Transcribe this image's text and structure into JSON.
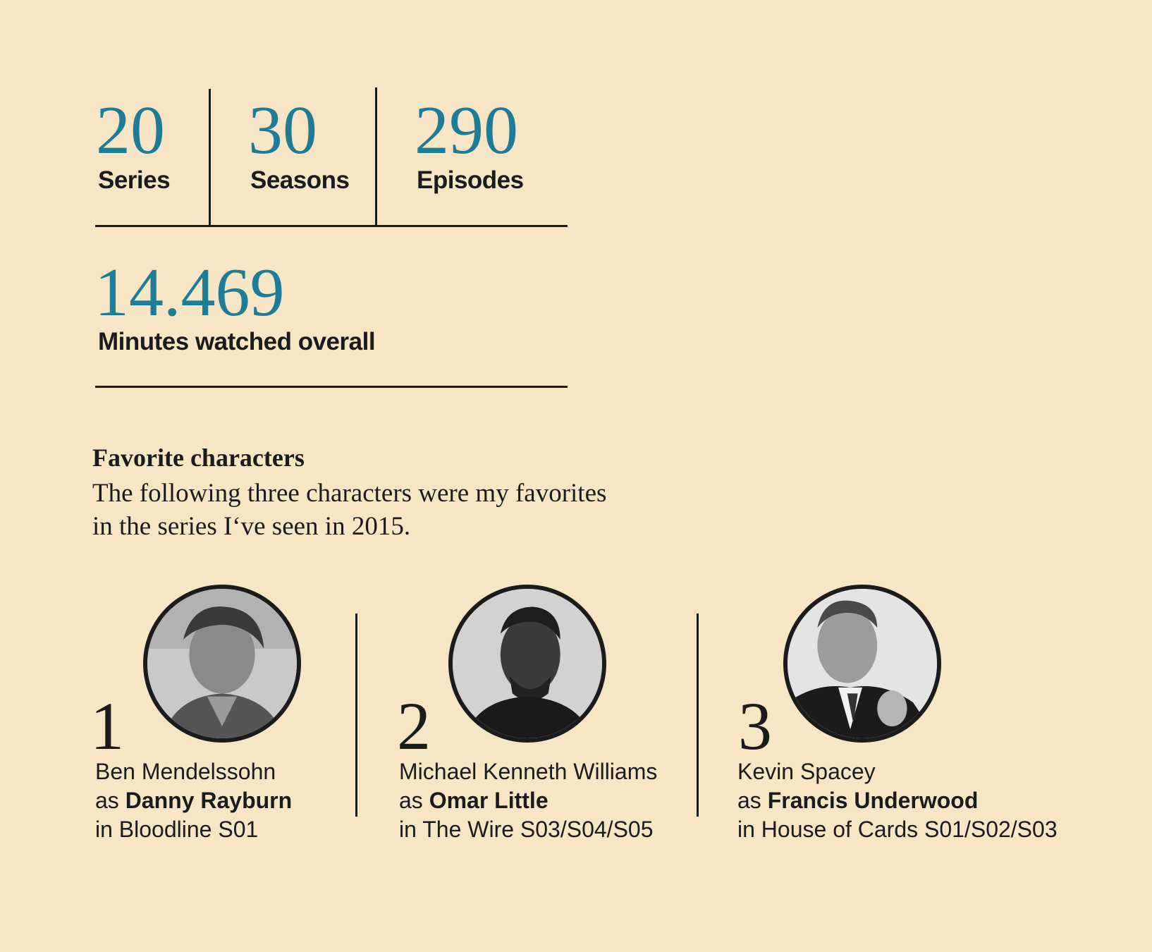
{
  "stats": {
    "series": {
      "value": "20",
      "label": "Series"
    },
    "seasons": {
      "value": "30",
      "label": "Seasons"
    },
    "episodes": {
      "value": "290",
      "label": "Episodes"
    },
    "minutes": {
      "value": "14.469",
      "label": "Minutes watched overall"
    }
  },
  "favorites": {
    "title": "Favorite characters",
    "description": "The following three characters were my favorites in the series I‘ve seen in 2015.",
    "characters": [
      {
        "rank": "1",
        "actor": "Ben Mendelssohn",
        "as_word": "as",
        "role": "Danny Rayburn",
        "in_word": "in",
        "show": "Bloodline S01"
      },
      {
        "rank": "2",
        "actor": "Michael Kenneth Williams",
        "as_word": "as",
        "role": "Omar Little",
        "in_word": "in",
        "show": "The Wire S03/S04/S05"
      },
      {
        "rank": "3",
        "actor": "Kevin Spacey",
        "as_word": "as",
        "role": "Francis Underwood",
        "in_word": "in",
        "show": "House of Cards S01/S02/S03"
      }
    ]
  },
  "colors": {
    "background": "#f6e6c6",
    "accent": "#1f7c96",
    "text": "#1b1b1b"
  }
}
